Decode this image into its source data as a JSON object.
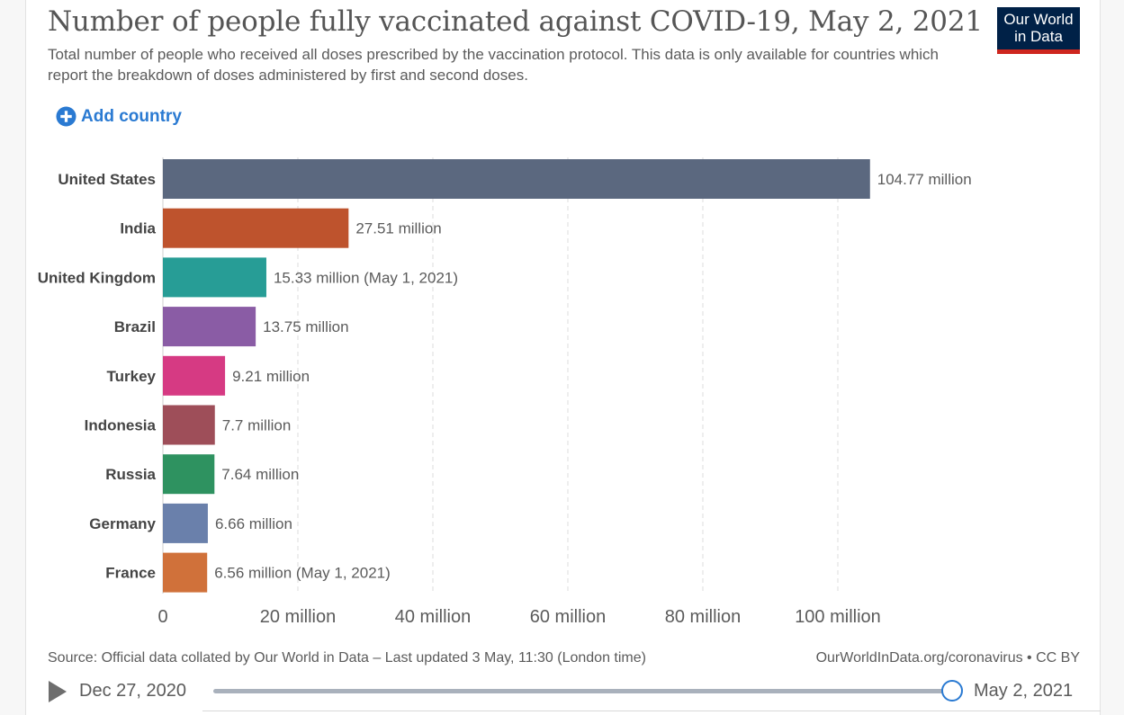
{
  "header": {
    "title": "Number of people fully vaccinated against COVID-19, May 2, 2021",
    "subtitle": "Total number of people who received all doses prescribed by the vaccination protocol. This data is only available for countries which report the breakdown of doses administered by first and second doses."
  },
  "logo": {
    "line1": "Our World",
    "line2": "in Data",
    "bg_color": "#002147",
    "accent_color": "#ce261e"
  },
  "controls": {
    "add_country_label": "Add country",
    "add_icon": "plus-circle-icon",
    "accent_color": "#2a7ad2"
  },
  "chart_data": {
    "type": "bar",
    "orientation": "horizontal",
    "categories": [
      "United States",
      "India",
      "United Kingdom",
      "Brazil",
      "Turkey",
      "Indonesia",
      "Russia",
      "Germany",
      "France"
    ],
    "values": [
      104.77,
      27.51,
      15.33,
      13.75,
      9.21,
      7.7,
      7.64,
      6.66,
      6.56
    ],
    "value_labels": [
      "104.77 million",
      "27.51 million",
      "15.33 million (May 1, 2021)",
      "13.75 million",
      "9.21 million",
      "7.7 million",
      "7.64 million",
      "6.66 million",
      "6.56 million (May 1, 2021)"
    ],
    "colors": [
      "#5b687f",
      "#be532d",
      "#279d96",
      "#8a5ca5",
      "#d63a83",
      "#9e4e59",
      "#2e9260",
      "#6a80ab",
      "#d0713a"
    ],
    "xlim": [
      0,
      110
    ],
    "xticks": [
      0,
      20,
      40,
      60,
      80,
      100
    ],
    "xtick_labels": [
      "0",
      "20 million",
      "40 million",
      "60 million",
      "80 million",
      "100 million"
    ],
    "grid": "vertical dashed"
  },
  "footer": {
    "source": "Source: Official data collated by Our World in Data – Last updated 3 May, 11:30 (London time)",
    "url": "OurWorldInData.org/coronavirus • CC BY"
  },
  "timeline": {
    "play_icon": "play-icon",
    "start_date": "Dec 27, 2020",
    "end_date": "May 2, 2021",
    "position": 1.0
  }
}
